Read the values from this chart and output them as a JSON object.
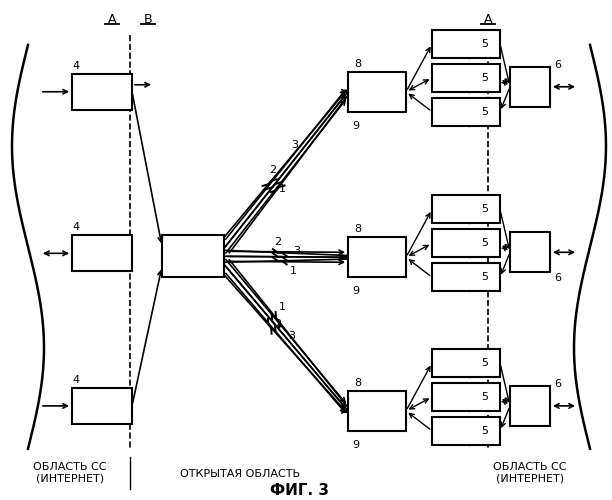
{
  "title": "ФИГ. 3",
  "bg_color": "#ffffff",
  "figsize": [
    6.12,
    5.0
  ],
  "dpi": 100,
  "label_A_left": "A",
  "label_B": "B",
  "label_A_right": "A",
  "text_bottom_left1": "ОБЛАСТЬ СС",
  "text_bottom_left2": "(ИНТЕРНЕТ)",
  "text_bottom_mid": "ОТКРЫТАЯ ОБЛАСТЬ",
  "text_bottom_right1": "ОБЛАСТЬ СС",
  "text_bottom_right2": "(ИНТЕРНЕТ)"
}
